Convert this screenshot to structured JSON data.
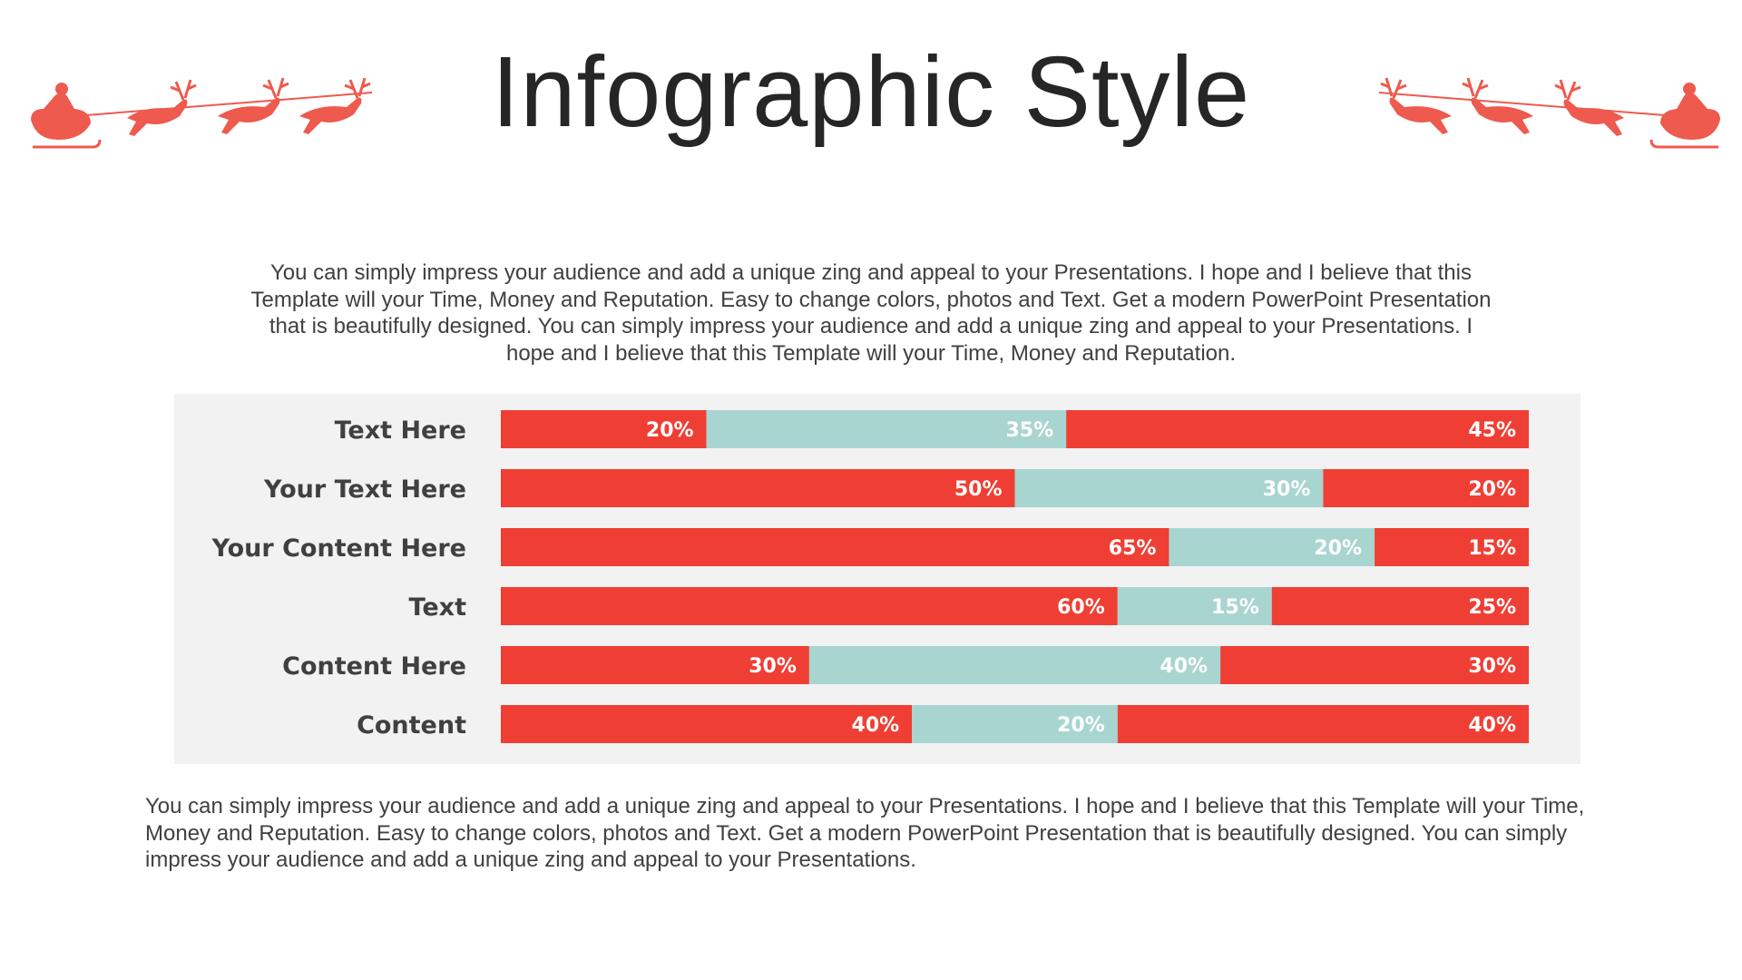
{
  "title": "Infographic Style",
  "intro_text": "You can simply impress your audience and add a unique zing and appeal to your Presentations. I hope and I believe that this Template will your Time, Money and Reputation. Easy to change colors, photos and Text. Get a modern PowerPoint  Presentation that is beautifully designed. You can simply impress your audience and add a unique zing and appeal to your Presentations. I hope and I believe that this Template will your Time, Money and Reputation.",
  "bottom_text": "You can simply impress your audience and add a unique zing and appeal to your Presentations. I hope and I believe that this Template will your Time, Money and Reputation. Easy to change colors, photos and Text. Get a modern PowerPoint  Presentation that is beautifully designed. You can simply impress your audience and add a unique zing and appeal to your Presentations.",
  "decorations": {
    "icon": "santa-sleigh-reindeer-icon",
    "color": "#ee5a4e"
  },
  "chart_data": {
    "type": "bar",
    "orientation": "horizontal",
    "stacked": true,
    "categories": [
      "Text Here",
      "Your Text Here",
      "Your Content  Here",
      "Text",
      "Content Here",
      "Content"
    ],
    "series": [
      {
        "values": [
          20,
          50,
          65,
          60,
          30,
          40
        ],
        "color": "#ef3f34"
      },
      {
        "values": [
          35,
          30,
          20,
          15,
          40,
          20
        ],
        "color": "#a9d5d1"
      },
      {
        "values": [
          45,
          20,
          15,
          25,
          30,
          40
        ],
        "color": "#ef3f34"
      }
    ],
    "value_suffix": "%",
    "xlim": [
      0,
      100
    ],
    "grid": false,
    "legend": "none"
  }
}
